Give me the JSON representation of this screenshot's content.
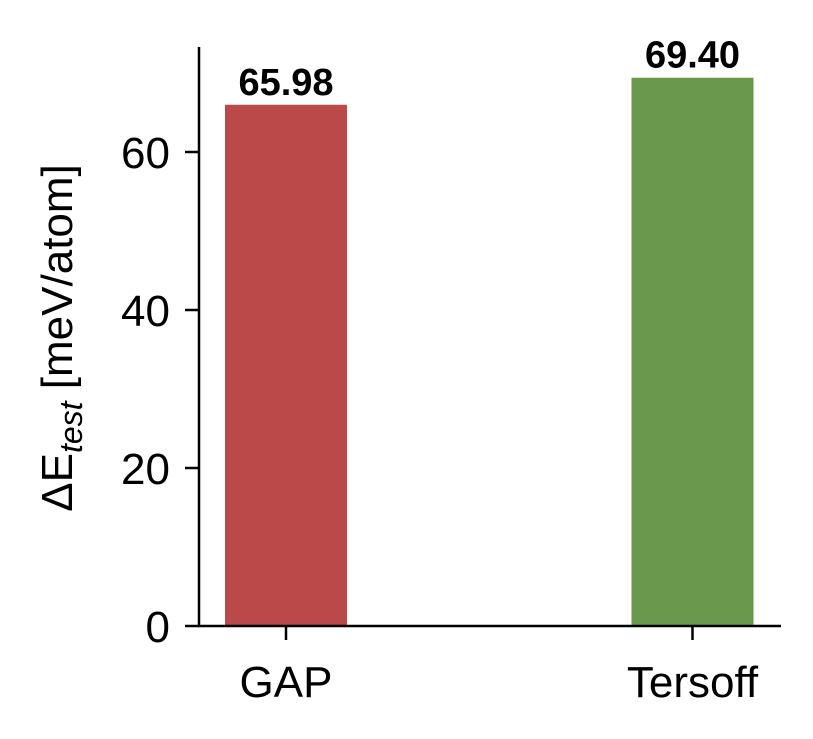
{
  "chart_data": {
    "type": "bar",
    "title": "",
    "xlabel": "",
    "ylabel": "ΔE_test [meV/atom]",
    "ylabel_parts": {
      "prefix": "ΔE",
      "subscript": "test",
      "suffix": " [meV/atom]"
    },
    "categories": [
      "GAP",
      "Tersoff"
    ],
    "values": [
      65.98,
      69.4
    ],
    "value_labels": [
      "65.98",
      "69.40"
    ],
    "colors": [
      "#bc494a",
      "#6a994e"
    ],
    "ylim": [
      0,
      73.3
    ],
    "yticks": [
      0,
      20,
      40,
      60
    ],
    "ytick_labels": [
      "0",
      "20",
      "40",
      "60"
    ],
    "grid": false,
    "legend": null
  }
}
